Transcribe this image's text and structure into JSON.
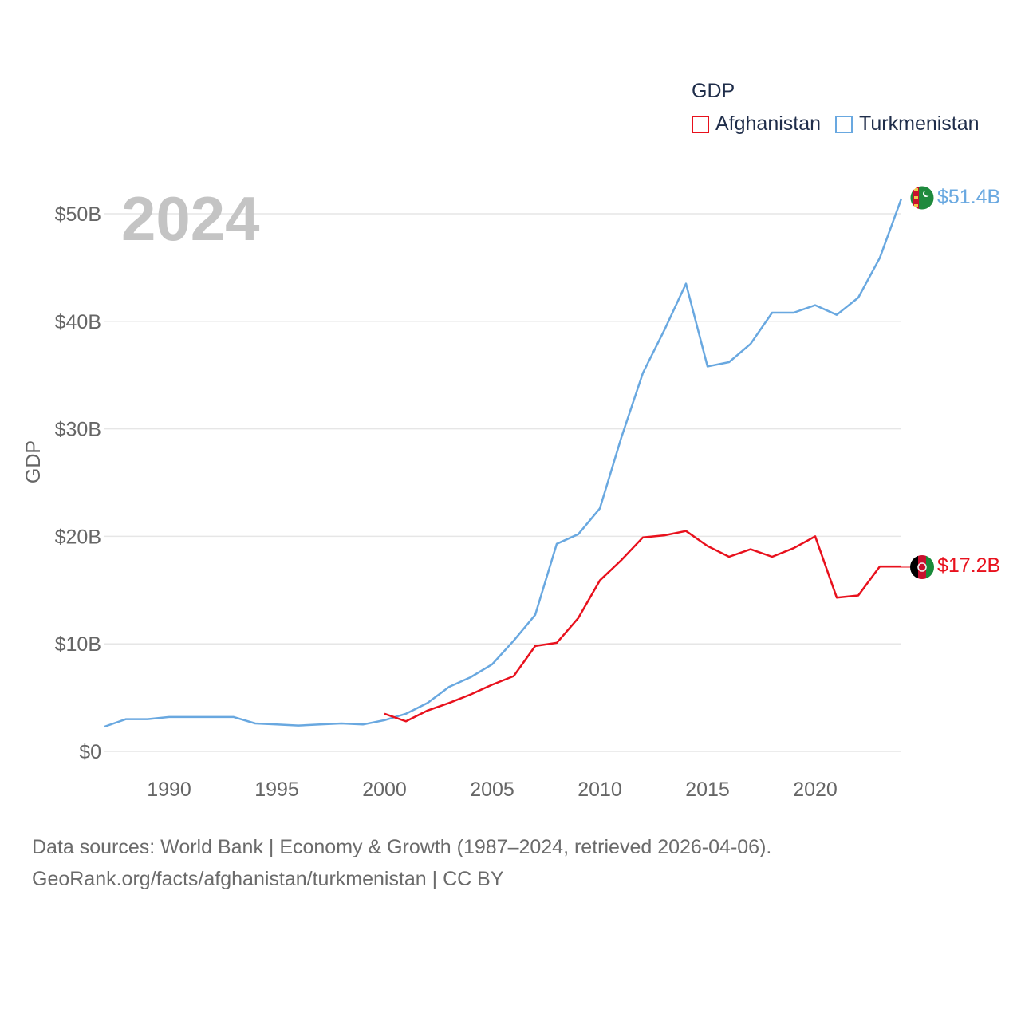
{
  "legend": {
    "title": "GDP",
    "items": [
      {
        "label": "Afghanistan",
        "color": "#e8111d"
      },
      {
        "label": "Turkmenistan",
        "color": "#69a8e0"
      }
    ]
  },
  "year_overlay": "2024",
  "end_labels": {
    "afghanistan": "$17.2B",
    "turkmenistan": "$51.4B"
  },
  "icons": {
    "afghanistan": "afghanistan-flag-icon",
    "turkmenistan": "turkmenistan-flag-icon"
  },
  "source": {
    "line1": "Data sources: World Bank | Economy & Growth (1987–2024, retrieved 2026-04-06).",
    "line2": "GeoRank.org/facts/afghanistan/turkmenistan | CC BY"
  },
  "chart_data": {
    "type": "line",
    "title": "",
    "xlabel": "",
    "ylabel": "GDP",
    "xlim": [
      1987,
      2024
    ],
    "ylim": [
      0,
      50
    ],
    "y_unit": "billion USD",
    "grid": true,
    "legend_position": "top-right",
    "x_ticks": [
      1990,
      1995,
      2000,
      2005,
      2010,
      2015,
      2020
    ],
    "x_tick_labels": [
      "1990",
      "1995",
      "2000",
      "2005",
      "2010",
      "2015",
      "2020"
    ],
    "y_ticks": [
      0,
      10,
      20,
      30,
      40,
      50
    ],
    "y_tick_labels": [
      "$0",
      "$10B",
      "$20B",
      "$30B",
      "$40B",
      "$50B"
    ],
    "series": [
      {
        "name": "Turkmenistan",
        "color": "#69a8e0",
        "x": [
          1987,
          1988,
          1989,
          1990,
          1991,
          1992,
          1993,
          1994,
          1995,
          1996,
          1997,
          1998,
          1999,
          2000,
          2001,
          2002,
          2003,
          2004,
          2005,
          2006,
          2007,
          2008,
          2009,
          2010,
          2011,
          2012,
          2013,
          2014,
          2015,
          2016,
          2017,
          2018,
          2019,
          2020,
          2021,
          2022,
          2023,
          2024
        ],
        "values": [
          2.3,
          3.0,
          3.0,
          3.2,
          3.2,
          3.2,
          3.2,
          2.6,
          2.5,
          2.4,
          2.5,
          2.6,
          2.5,
          2.9,
          3.5,
          4.5,
          6.0,
          6.9,
          8.1,
          10.3,
          12.7,
          19.3,
          20.2,
          22.6,
          29.2,
          35.2,
          39.2,
          43.5,
          35.8,
          36.2,
          37.9,
          40.8,
          40.8,
          41.5,
          40.6,
          42.2,
          45.9,
          51.4
        ]
      },
      {
        "name": "Afghanistan",
        "color": "#e8111d",
        "x": [
          2000,
          2001,
          2002,
          2003,
          2004,
          2005,
          2006,
          2007,
          2008,
          2009,
          2010,
          2011,
          2012,
          2013,
          2014,
          2015,
          2016,
          2017,
          2018,
          2019,
          2020,
          2021,
          2022,
          2023,
          2024
        ],
        "values": [
          3.5,
          2.8,
          3.8,
          4.5,
          5.3,
          6.2,
          7.0,
          9.8,
          10.1,
          12.4,
          15.9,
          17.8,
          19.9,
          20.1,
          20.5,
          19.1,
          18.1,
          18.8,
          18.1,
          18.9,
          20.0,
          14.3,
          14.5,
          17.2,
          17.2
        ]
      }
    ]
  }
}
